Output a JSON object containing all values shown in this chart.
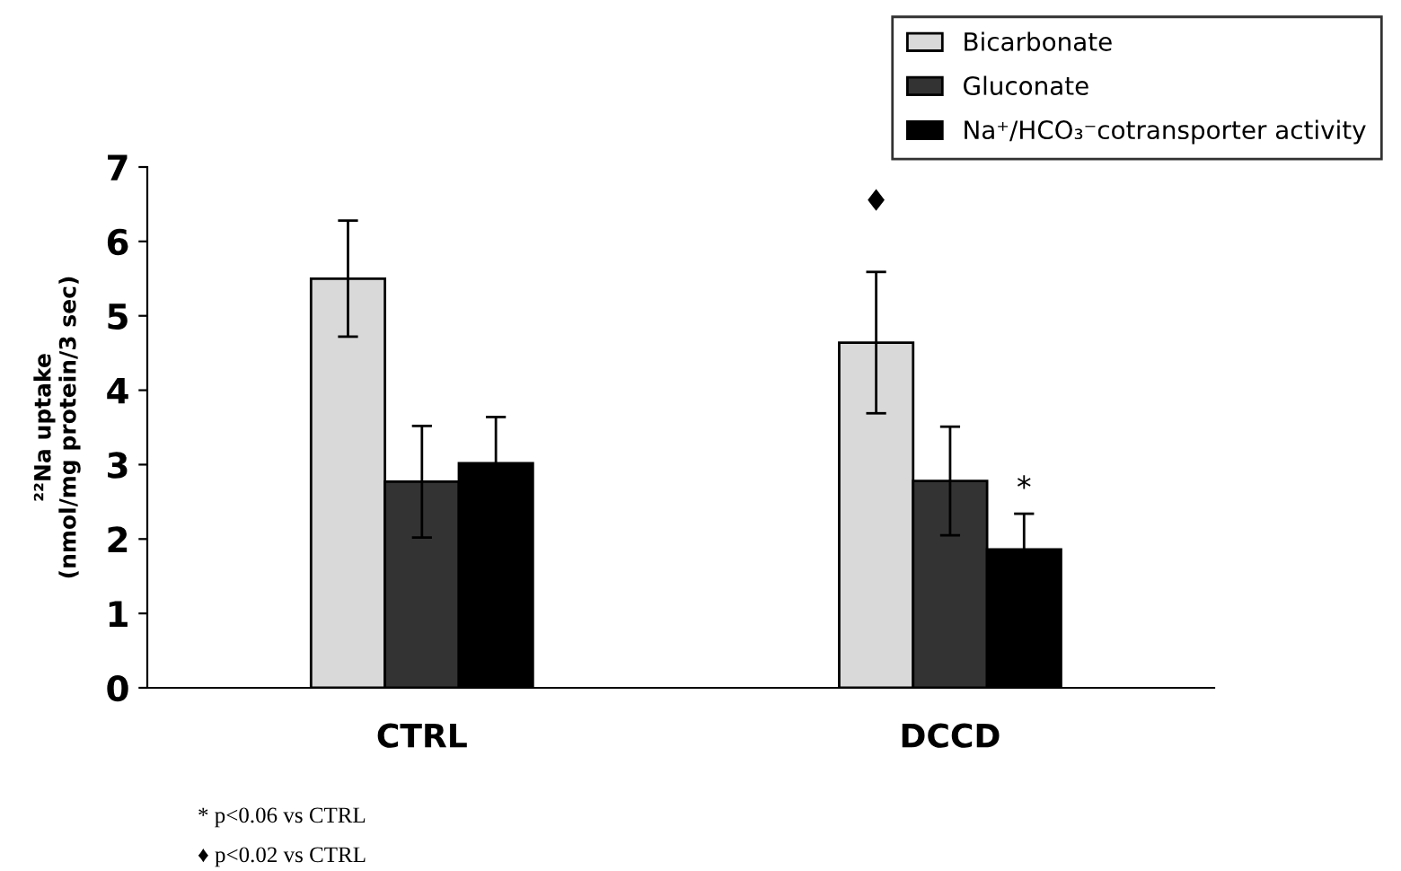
{
  "chart_data": {
    "type": "bar",
    "ylabel": "²²Na uptake\n(nmol/mg protein/3 sec)",
    "categories": [
      "CTRL",
      "DCCD"
    ],
    "series": [
      {
        "name": "Bicarbonate",
        "color": "#d9d9d9",
        "values": [
          5.5,
          4.64
        ],
        "errors": [
          0.78,
          0.95
        ]
      },
      {
        "name": "Gluconate",
        "color": "#333333",
        "values": [
          2.77,
          2.78
        ],
        "errors": [
          0.75,
          0.73
        ]
      },
      {
        "name": "Na⁺/HCO₃⁻cotransporter activity",
        "color": "#000000",
        "values": [
          3.02,
          1.86
        ],
        "errors": [
          0.62,
          0.48
        ]
      }
    ],
    "ylim": [
      0,
      7
    ],
    "yticks": [
      0,
      1,
      2,
      3,
      4,
      5,
      6,
      7
    ],
    "grid": false,
    "legend": "top right",
    "annotations": [
      "♦",
      "*",
      "* p<0.06 vs CTRL",
      "♦ p<0.02 vs CTRL"
    ]
  }
}
